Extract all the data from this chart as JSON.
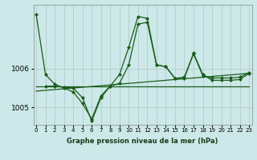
{
  "background_color": "#cce8e8",
  "line_color": "#1a5c1a",
  "grid_color": "#b0c8c8",
  "xlabel": "Graphe pression niveau de la mer (hPa)",
  "yticks": [
    1005,
    1006
  ],
  "xticks": [
    0,
    1,
    2,
    3,
    4,
    5,
    6,
    7,
    8,
    9,
    10,
    11,
    12,
    13,
    14,
    15,
    16,
    17,
    18,
    19,
    20,
    21,
    22,
    23
  ],
  "ylim": [
    1004.55,
    1007.65
  ],
  "xlim": [
    -0.3,
    23.3
  ],
  "series": [
    {
      "x": [
        0,
        1,
        2,
        3,
        4,
        5,
        6,
        7,
        8,
        9,
        10,
        11,
        12,
        13,
        14,
        15,
        16,
        17,
        18,
        19,
        20,
        21,
        22,
        23
      ],
      "y": [
        1007.4,
        1005.85,
        1005.6,
        1005.5,
        1005.4,
        1005.1,
        1004.7,
        1005.3,
        1005.55,
        1005.85,
        1006.55,
        1007.35,
        1007.3,
        1006.1,
        1006.05,
        1005.75,
        1005.75,
        1006.4,
        1005.85,
        1005.7,
        1005.7,
        1005.7,
        1005.72,
        1005.88
      ],
      "marker": "D",
      "markersize": 2.0,
      "linewidth": 0.9
    },
    {
      "x": [
        0,
        1,
        2,
        3,
        4,
        5,
        6,
        7,
        8,
        9,
        10,
        11,
        12,
        13,
        14,
        15,
        16,
        17,
        18,
        19,
        20,
        21,
        22,
        23
      ],
      "y": [
        1005.42,
        1005.44,
        1005.46,
        1005.48,
        1005.5,
        1005.52,
        1005.54,
        1005.56,
        1005.58,
        1005.6,
        1005.62,
        1005.64,
        1005.66,
        1005.68,
        1005.7,
        1005.72,
        1005.74,
        1005.76,
        1005.78,
        1005.8,
        1005.82,
        1005.84,
        1005.86,
        1005.88
      ],
      "marker": null,
      "markersize": 0,
      "linewidth": 0.9
    },
    {
      "x": [
        0,
        1,
        2,
        3,
        4,
        5,
        6,
        7,
        8,
        9,
        10,
        11,
        12,
        13,
        14,
        15,
        16,
        17,
        18,
        19,
        20,
        21,
        22,
        23
      ],
      "y": [
        1005.55,
        1005.55,
        1005.55,
        1005.55,
        1005.55,
        1005.55,
        1005.55,
        1005.55,
        1005.55,
        1005.55,
        1005.55,
        1005.55,
        1005.55,
        1005.55,
        1005.55,
        1005.55,
        1005.55,
        1005.55,
        1005.55,
        1005.55,
        1005.55,
        1005.55,
        1005.55,
        1005.55
      ],
      "marker": null,
      "markersize": 0,
      "linewidth": 0.9
    },
    {
      "x": [
        1,
        2,
        3,
        4,
        5,
        6,
        7,
        8,
        9,
        10,
        11,
        12,
        13,
        14,
        15,
        16,
        17,
        18,
        19,
        20,
        21,
        22,
        23
      ],
      "y": [
        1005.55,
        1005.55,
        1005.52,
        1005.5,
        1005.25,
        1004.65,
        1005.25,
        1005.55,
        1005.62,
        1006.1,
        1007.15,
        1007.2,
        1006.1,
        1006.05,
        1005.75,
        1005.78,
        1006.38,
        1005.82,
        1005.76,
        1005.76,
        1005.76,
        1005.78,
        1005.9
      ],
      "marker": "D",
      "markersize": 2.0,
      "linewidth": 0.9
    }
  ],
  "xlabel_fontsize": 6.0,
  "xlabel_fontweight": "bold",
  "xtick_fontsize": 5.0,
  "ytick_fontsize": 6.5
}
